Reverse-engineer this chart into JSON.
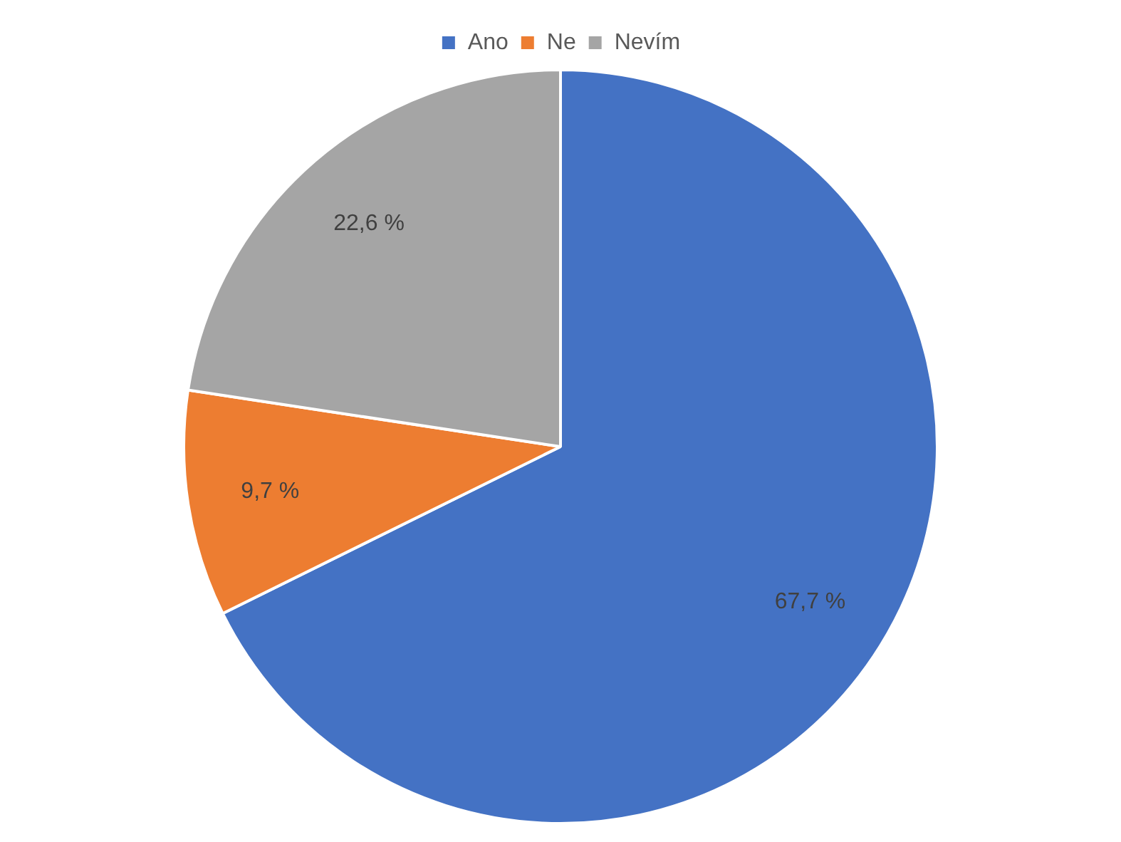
{
  "chart_data": {
    "type": "pie",
    "categories": [
      "Ano",
      "Ne",
      "Nevím"
    ],
    "values": [
      67.7,
      9.7,
      22.6
    ],
    "colors": [
      "#4472c4",
      "#ed7d31",
      "#a5a5a5"
    ],
    "value_labels": [
      "67,7 %",
      "9,7 %",
      "22,6 %"
    ],
    "legend": "top"
  }
}
